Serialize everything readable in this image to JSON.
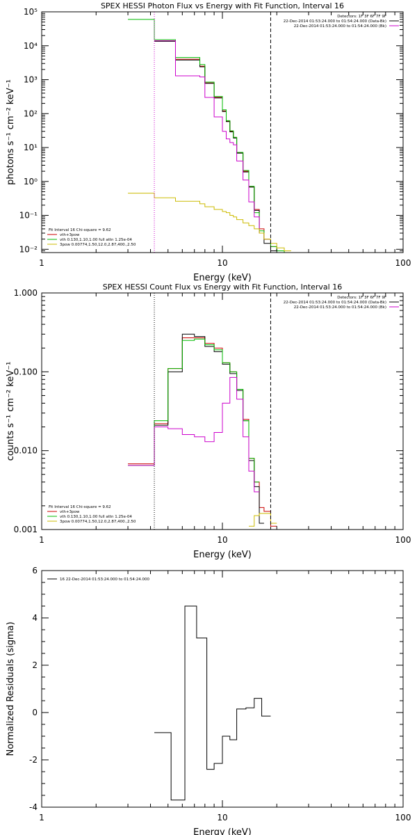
{
  "chart_data": [
    {
      "type": "line",
      "title": "SPEX HESSI Photon Flux vs Energy with Fit Function, Interval 16",
      "xlabel": "Energy (keV)",
      "ylabel": "photons s⁻¹ cm⁻² keV⁻¹",
      "x_scale": "log",
      "y_scale": "log",
      "xlim": [
        1,
        100
      ],
      "ylim": [
        0.008,
        100000
      ],
      "x_ticks": [
        {
          "v": 1,
          "label": "1"
        },
        {
          "v": 10,
          "label": "10"
        },
        {
          "v": 100,
          "label": "100"
        }
      ],
      "y_ticks": [
        {
          "v": 0.01,
          "label": "10⁻²"
        },
        {
          "v": 0.1,
          "label": "10⁻¹"
        },
        {
          "v": 1,
          "label": "10⁰"
        },
        {
          "v": 10,
          "label": "10¹"
        },
        {
          "v": 100,
          "label": "10²"
        },
        {
          "v": 1000,
          "label": "10³"
        },
        {
          "v": 10000,
          "label": "10⁴"
        },
        {
          "v": 100000,
          "label": "10⁵"
        }
      ],
      "vlines": [
        {
          "x": 4.2,
          "style": "dotted",
          "color": "#cc00cc"
        },
        {
          "x": 18.5,
          "style": "dashed",
          "color": "#000000"
        }
      ],
      "info_lines": [
        "Detectors: 1F 3F 6F 7F 9F",
        "22-Dec-2014 01:53:24.000 to 01:54:24.000 (Data-Bk)",
        "22-Dec-2014 01:53:24.000 to 01:54:24.000 (Bk)"
      ],
      "info_colors": [
        "",
        "#000000",
        "#cc00cc"
      ],
      "legend_lines": [
        "Fit Interval 16   Chi-square = 9.62",
        "vth+3pow",
        "vth 0.130,1.10,1.00  full attn 1.25e-04",
        "3pow 0.00774,1.50,12.0,2.87,400.,2.50"
      ],
      "legend_colors": [
        "",
        "#cc0000",
        "#00bb00",
        "#ccbb00"
      ],
      "edges": [
        3,
        4.2,
        5,
        5.5,
        6,
        6.5,
        7,
        7.5,
        8,
        8.5,
        9,
        9.5,
        10,
        10.5,
        11,
        11.5,
        12,
        13,
        14,
        15,
        16,
        17,
        18.5,
        20,
        22,
        24,
        26
      ],
      "series": [
        {
          "color": "#cc0000",
          "values": [
            null,
            14000,
            14000,
            4000,
            4000,
            4000,
            4000,
            2500,
            800,
            800,
            300,
            300,
            120,
            60,
            30,
            20,
            7,
            2,
            0.7,
            0.15,
            0.04,
            0.02,
            0.012,
            0.009,
            0.008,
            null
          ]
        },
        {
          "color": "#000000",
          "values": [
            null,
            13500,
            13500,
            3800,
            3800,
            3800,
            3800,
            2400,
            780,
            780,
            290,
            290,
            115,
            58,
            29,
            19,
            6.8,
            1.9,
            0.68,
            0.14,
            0.03,
            0.015,
            0.009,
            null,
            null,
            null
          ]
        },
        {
          "color": "#00bb00",
          "values": [
            60000,
            15000,
            15000,
            4500,
            4500,
            4500,
            4500,
            2800,
            850,
            850,
            320,
            320,
            130,
            62,
            31,
            20,
            7.2,
            2.1,
            0.72,
            0.12,
            0.035,
            0.02,
            0.012,
            0.009,
            0.008,
            null
          ]
        },
        {
          "color": "#cc00cc",
          "values": [
            null,
            14000,
            14000,
            1300,
            1300,
            1300,
            1300,
            1200,
            300,
            300,
            80,
            80,
            30,
            18,
            14,
            12,
            4,
            1.1,
            0.25,
            0.09,
            0.03,
            0.02,
            null,
            null,
            null,
            null
          ]
        },
        {
          "color": "#ccbb00",
          "values": [
            0.45,
            0.33,
            0.33,
            0.26,
            0.26,
            0.26,
            0.26,
            0.22,
            0.18,
            0.18,
            0.15,
            0.15,
            0.13,
            0.12,
            0.1,
            0.09,
            0.075,
            0.06,
            0.05,
            0.04,
            0.03,
            0.02,
            0.015,
            0.011,
            0.009,
            null
          ]
        }
      ]
    },
    {
      "type": "line",
      "title": "SPEX HESSI Count Flux vs Energy with Fit Function, Interval 16",
      "xlabel": "Energy (keV)",
      "ylabel": "counts s⁻¹ cm⁻² keV⁻¹",
      "x_scale": "log",
      "y_scale": "log",
      "xlim": [
        1,
        100
      ],
      "ylim": [
        0.001,
        1
      ],
      "x_ticks": [
        {
          "v": 1,
          "label": "1"
        },
        {
          "v": 10,
          "label": "10"
        },
        {
          "v": 100,
          "label": "100"
        }
      ],
      "y_ticks": [
        {
          "v": 0.001,
          "label": "0.001"
        },
        {
          "v": 0.01,
          "label": "0.010"
        },
        {
          "v": 0.1,
          "label": "0.100"
        },
        {
          "v": 1,
          "label": "1.000"
        }
      ],
      "vlines": [
        {
          "x": 4.2,
          "style": "dotted",
          "color": "#000000"
        },
        {
          "x": 18.5,
          "style": "dashed",
          "color": "#000000"
        }
      ],
      "info_lines": [
        "Detectors: 1F 3F 6F 7F 9F",
        "22-Dec-2014 01:53:24.000 to 01:54:24.000 (Data-Bk)",
        "22-Dec-2014 01:53:24.000 to 01:54:24.000 (Bk)"
      ],
      "info_colors": [
        "",
        "#000000",
        "#cc00cc"
      ],
      "legend_lines": [
        "Fit Interval 16   Chi-square = 9.62",
        "vth+3pow",
        "vth 0.130,1.10,1.00  full attn 1.25e-04",
        "3pow 0.00774,1.50,12.0,2.87,400.,2.50"
      ],
      "legend_colors": [
        "",
        "#cc0000",
        "#00bb00",
        "#ccbb00"
      ],
      "edges": [
        3,
        4.2,
        5,
        6,
        7,
        8,
        9,
        10,
        11,
        12,
        13,
        14,
        15,
        16,
        17,
        18.5,
        20,
        22,
        24,
        26
      ],
      "series": [
        {
          "color": "#cc0000",
          "values": [
            0.0068,
            0.022,
            0.11,
            0.27,
            0.27,
            0.23,
            0.2,
            0.13,
            0.1,
            0.06,
            0.025,
            0.008,
            0.004,
            0.0019,
            0.0017,
            0.0011,
            null,
            null,
            null
          ]
        },
        {
          "color": "#000000",
          "values": [
            null,
            0.021,
            0.1,
            0.3,
            0.28,
            0.21,
            0.18,
            0.125,
            0.095,
            0.058,
            0.024,
            0.0075,
            0.0035,
            0.0012,
            null,
            null,
            null,
            null,
            null
          ]
        },
        {
          "color": "#00bb00",
          "values": [
            0.0065,
            0.024,
            0.11,
            0.25,
            0.26,
            0.22,
            0.19,
            0.13,
            0.1,
            0.06,
            0.024,
            0.008,
            0.004,
            null,
            null,
            null,
            null,
            null,
            null
          ]
        },
        {
          "color": "#cc00cc",
          "values": [
            0.0065,
            0.02,
            0.019,
            0.016,
            0.015,
            0.013,
            0.017,
            0.04,
            0.085,
            0.045,
            0.015,
            0.0055,
            0.003,
            null,
            null,
            null,
            null,
            null,
            null
          ]
        },
        {
          "color": "#ccbb00",
          "values": [
            null,
            null,
            null,
            null,
            null,
            null,
            null,
            null,
            null,
            null,
            null,
            0.0011,
            0.0015,
            0.0016,
            0.0016,
            0.0012,
            null,
            null,
            null
          ]
        }
      ]
    },
    {
      "type": "line",
      "title": "",
      "xlabel": "Energy (keV)",
      "ylabel": "Normalized Residuals (sigma)",
      "x_scale": "log",
      "y_scale": "linear",
      "xlim": [
        1,
        100
      ],
      "ylim": [
        -4,
        6
      ],
      "x_ticks": [
        {
          "v": 1,
          "label": "1"
        },
        {
          "v": 10,
          "label": "10"
        },
        {
          "v": 100,
          "label": "100"
        }
      ],
      "y_ticks": [
        {
          "v": -4,
          "label": "-4"
        },
        {
          "v": -2,
          "label": "-2"
        },
        {
          "v": 0,
          "label": "0"
        },
        {
          "v": 2,
          "label": "2"
        },
        {
          "v": 4,
          "label": "4"
        },
        {
          "v": 6,
          "label": "6"
        }
      ],
      "vlines": [],
      "info_lines": [],
      "legend_lines": [
        "16  22-Dec-2014 01:53:24.000 to 01:54:24.000"
      ],
      "legend_colors": [
        "#000000"
      ],
      "edges": [
        4.2,
        5.2,
        6.2,
        7.2,
        8.2,
        9,
        10,
        11,
        12,
        13.5,
        15,
        16.5,
        18.5
      ],
      "series": [
        {
          "color": "#000000",
          "values": [
            -0.85,
            -3.7,
            4.5,
            3.15,
            -2.4,
            -2.15,
            -1,
            -1.15,
            0.15,
            0.2,
            0.6,
            -0.15
          ]
        }
      ]
    }
  ]
}
